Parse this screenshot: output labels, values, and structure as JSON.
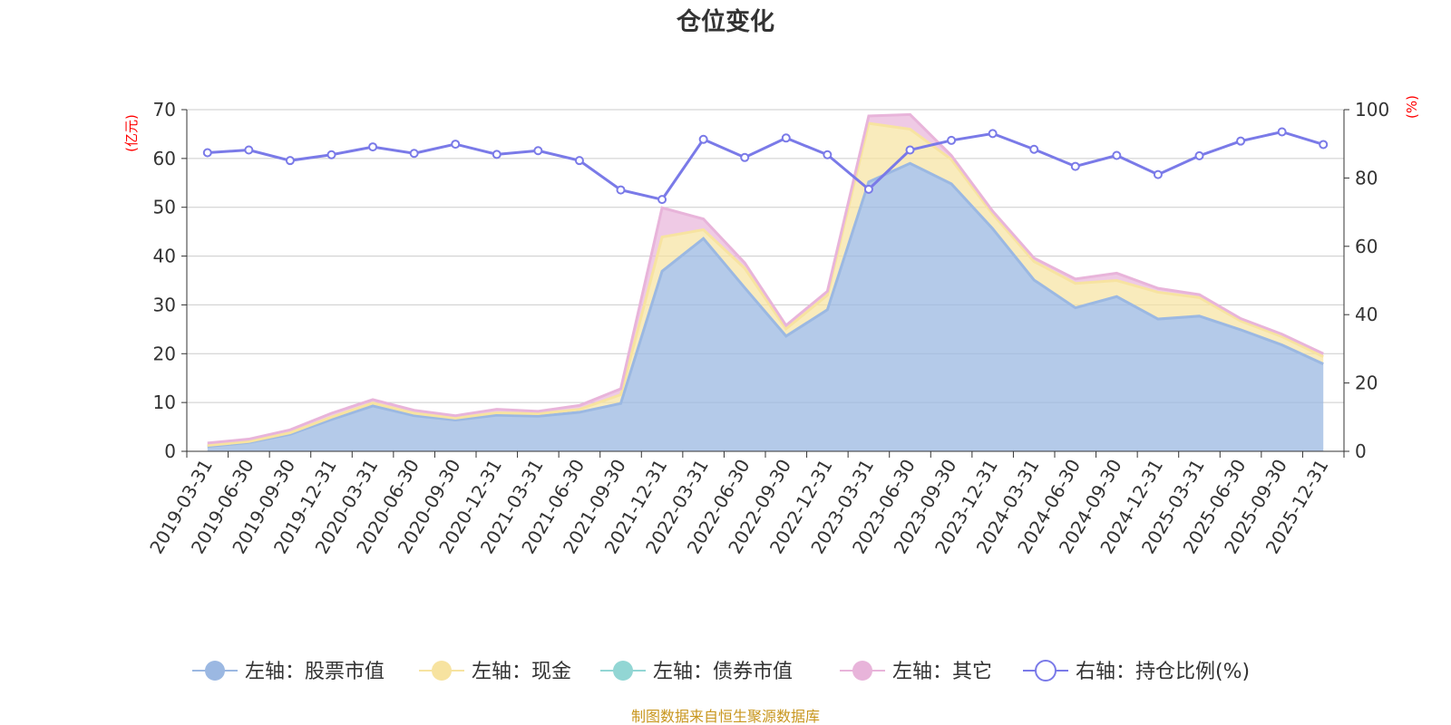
{
  "chart_data": {
    "type": "area",
    "title": "仓位变化",
    "left_axis_unit": "(亿元)",
    "right_axis_unit": "(%)",
    "source": "制图数据来自恒生聚源数据库",
    "x": [
      "2019-03-31",
      "2019-06-30",
      "2019-09-30",
      "2019-12-31",
      "2020-03-31",
      "2020-06-30",
      "2020-09-30",
      "2020-12-31",
      "2021-03-31",
      "2021-06-30",
      "2021-09-30",
      "2021-12-31",
      "2022-03-31",
      "2022-06-30",
      "2022-09-30",
      "2022-12-31",
      "2023-03-31",
      "2023-06-30",
      "2023-09-30",
      "2023-12-31",
      "2024-03-31",
      "2024-06-30",
      "2024-09-30",
      "2024-12-31",
      "2025-03-31",
      "2025-06-30",
      "2025-09-30",
      "2025-12-31"
    ],
    "y_left": {
      "min": 0,
      "max": 70,
      "ticks": [
        "0",
        "10",
        "20",
        "30",
        "40",
        "50",
        "60",
        "70"
      ]
    },
    "y_right": {
      "min": 0,
      "max": 100,
      "ticks": [
        "0",
        "20",
        "40",
        "60",
        "80",
        "100"
      ]
    },
    "colors": {
      "stock": "#9bb8e2",
      "cash": "#f7e3a0",
      "bond": "#92d6d4",
      "other": "#e8b4da",
      "ratio": "#7a7ae8",
      "grid": "#cccccc",
      "axis": "#333333"
    },
    "series": [
      {
        "key": "stock",
        "name": "左轴：股票市值",
        "axis": "left",
        "stacked": true,
        "values": [
          1.0,
          1.8,
          3.5,
          6.5,
          9.3,
          7.3,
          6.4,
          7.4,
          7.2,
          8.0,
          9.8,
          36.9,
          43.6,
          33.5,
          23.6,
          29.0,
          55.2,
          59.0,
          54.8,
          45.6,
          35.1,
          29.4,
          31.7,
          27.1,
          27.7,
          24.9,
          21.8,
          17.9
        ]
      },
      {
        "key": "cash",
        "name": "左轴：现金",
        "axis": "left",
        "stacked": true,
        "values": [
          0.2,
          0.2,
          0.3,
          0.5,
          0.6,
          0.5,
          0.4,
          0.5,
          0.5,
          0.6,
          1.8,
          7.0,
          1.8,
          4.0,
          1.5,
          3.0,
          12.0,
          7.0,
          5.0,
          3.0,
          3.8,
          5.0,
          3.3,
          5.5,
          3.8,
          1.8,
          1.7,
          1.5
        ]
      },
      {
        "key": "bond",
        "name": "左轴：债券市值",
        "axis": "left",
        "stacked": true,
        "values": [
          0,
          0,
          0,
          0,
          0,
          0,
          0,
          0,
          0,
          0,
          0,
          0,
          0,
          0,
          0,
          0,
          0,
          0,
          0,
          0,
          0,
          0,
          0,
          0,
          0,
          0,
          0,
          0
        ]
      },
      {
        "key": "other",
        "name": "左轴：其它",
        "axis": "left",
        "stacked": true,
        "values": [
          0.5,
          0.5,
          0.6,
          0.8,
          0.7,
          0.6,
          0.5,
          0.7,
          0.5,
          0.8,
          1.2,
          6.0,
          2.2,
          1.1,
          0.7,
          0.8,
          1.5,
          3.0,
          0.8,
          0.6,
          0.7,
          0.9,
          1.5,
          0.8,
          0.6,
          0.5,
          0.5,
          0.6
        ]
      },
      {
        "key": "ratio",
        "name": "右轴：持仓比例(%)",
        "axis": "right",
        "type": "line",
        "values": [
          87.4,
          88.2,
          85.1,
          86.8,
          89.1,
          87.2,
          89.9,
          86.9,
          88.0,
          85.1,
          76.5,
          73.7,
          91.3,
          86.0,
          91.7,
          86.8,
          76.7,
          88.2,
          91.0,
          93.0,
          88.4,
          83.4,
          86.6,
          81.0,
          86.5,
          90.8,
          93.5,
          89.8
        ]
      }
    ],
    "legend": {
      "position": "bottom"
    },
    "grid": true
  }
}
